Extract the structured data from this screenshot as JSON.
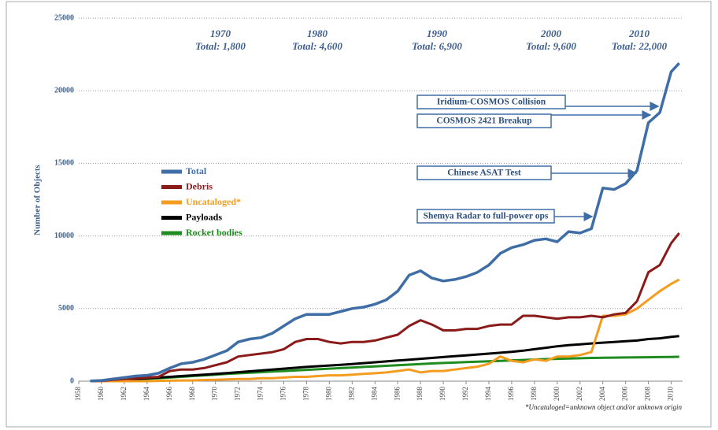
{
  "chart_data": {
    "type": "line",
    "y_label": "Number of Objects",
    "footnote": "*Uncataloged=unknown object and/or unknown origin",
    "decade_totals": [
      {
        "year": "1970",
        "total": "Total:  1,800"
      },
      {
        "year": "1980",
        "total": "Total:  4,600"
      },
      {
        "year": "1990",
        "total": "Total:  6,900"
      },
      {
        "year": "2000",
        "total": "Total:  9,600"
      },
      {
        "year": "2010",
        "total": "Total:  22,000"
      }
    ],
    "events": [
      "Iridium-COSMOS Collision",
      "COSMOS 2421 Breakup",
      "Chinese ASAT Test",
      "Shemya Radar to full-power ops"
    ],
    "x": [
      1959,
      1960,
      1961,
      1962,
      1963,
      1964,
      1965,
      1966,
      1967,
      1968,
      1969,
      1970,
      1971,
      1972,
      1973,
      1974,
      1975,
      1976,
      1977,
      1978,
      1979,
      1980,
      1981,
      1982,
      1983,
      1984,
      1985,
      1986,
      1987,
      1988,
      1989,
      1990,
      1991,
      1992,
      1993,
      1994,
      1995,
      1996,
      1997,
      1998,
      1999,
      2000,
      2001,
      2002,
      2003,
      2004,
      2005,
      2006,
      2007,
      2008,
      2009,
      2010,
      2010.7
    ],
    "series": [
      {
        "name": "Total",
        "color": "#3f6ea6",
        "values": [
          10,
          50,
          150,
          250,
          350,
          400,
          550,
          900,
          1200,
          1300,
          1500,
          1800,
          2100,
          2700,
          2900,
          3000,
          3300,
          3800,
          4300,
          4600,
          4600,
          4600,
          4800,
          5000,
          5100,
          5300,
          5600,
          6200,
          7300,
          7600,
          7100,
          6900,
          7000,
          7200,
          7500,
          8000,
          8800,
          9200,
          9400,
          9700,
          9800,
          9600,
          10300,
          10200,
          10500,
          13300,
          13200,
          13600,
          14500,
          17800,
          18500,
          21300,
          21900
        ]
      },
      {
        "name": "Debris",
        "color": "#8b1a1a",
        "values": [
          0,
          20,
          100,
          150,
          200,
          250,
          300,
          700,
          800,
          800,
          900,
          1100,
          1300,
          1700,
          1800,
          1900,
          2000,
          2200,
          2700,
          2900,
          2900,
          2700,
          2600,
          2700,
          2700,
          2800,
          3000,
          3200,
          3800,
          4200,
          3900,
          3500,
          3500,
          3600,
          3600,
          3800,
          3900,
          3900,
          4500,
          4500,
          4400,
          4300,
          4400,
          4400,
          4500,
          4400,
          4600,
          4700,
          5500,
          7500,
          8000,
          9500,
          10200
        ]
      },
      {
        "name": "Uncataloged*",
        "color": "#f39c1f",
        "values": [
          0,
          0,
          0,
          0,
          0,
          0,
          20,
          30,
          50,
          50,
          80,
          100,
          120,
          150,
          150,
          200,
          200,
          250,
          300,
          300,
          350,
          400,
          400,
          450,
          500,
          550,
          600,
          700,
          800,
          600,
          700,
          700,
          800,
          900,
          1000,
          1200,
          1700,
          1400,
          1300,
          1500,
          1400,
          1700,
          1700,
          1800,
          2000,
          4500,
          4500,
          4600,
          5000,
          5600,
          6200,
          6700,
          7000
        ]
      },
      {
        "name": "Payloads",
        "color": "#000000",
        "values": [
          10,
          30,
          60,
          100,
          150,
          200,
          250,
          300,
          350,
          400,
          450,
          500,
          560,
          620,
          680,
          740,
          800,
          860,
          920,
          980,
          1030,
          1080,
          1130,
          1180,
          1240,
          1300,
          1360,
          1420,
          1480,
          1540,
          1600,
          1660,
          1720,
          1780,
          1840,
          1900,
          1960,
          2020,
          2100,
          2200,
          2300,
          2400,
          2480,
          2540,
          2600,
          2650,
          2700,
          2750,
          2800,
          2900,
          2950,
          3050,
          3100
        ]
      },
      {
        "name": "Rocket bodies",
        "color": "#1e8c1e",
        "values": [
          5,
          20,
          50,
          80,
          120,
          160,
          200,
          250,
          300,
          350,
          400,
          450,
          500,
          540,
          580,
          620,
          660,
          700,
          740,
          780,
          820,
          860,
          900,
          940,
          980,
          1020,
          1060,
          1100,
          1140,
          1180,
          1220,
          1250,
          1280,
          1310,
          1340,
          1370,
          1400,
          1430,
          1460,
          1490,
          1520,
          1540,
          1560,
          1580,
          1600,
          1610,
          1620,
          1630,
          1640,
          1650,
          1660,
          1670,
          1680
        ]
      }
    ],
    "xlim": [
      1958,
      2011
    ],
    "xticks": [
      1958,
      1960,
      1962,
      1964,
      1966,
      1968,
      1970,
      1972,
      1974,
      1976,
      1978,
      1980,
      1982,
      1984,
      1986,
      1988,
      1990,
      1992,
      1994,
      1996,
      1998,
      2000,
      2002,
      2004,
      2006,
      2008,
      2010
    ],
    "ylim": [
      0,
      25000
    ],
    "yticks": [
      0,
      5000,
      10000,
      15000,
      20000,
      25000
    ],
    "grid": true,
    "legend": "left"
  }
}
